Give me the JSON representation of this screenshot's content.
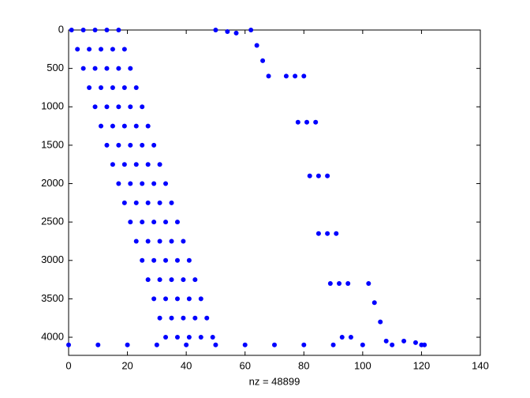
{
  "chart_data": {
    "type": "scatter",
    "xlabel": "nz = 48899",
    "color": "#0000ff",
    "yreverse": true,
    "xlim": [
      0,
      140
    ],
    "xticks": [
      0,
      20,
      40,
      60,
      80,
      100,
      120,
      140
    ],
    "ylim": [
      0,
      4236
    ],
    "yticks": [
      0,
      500,
      1000,
      1500,
      2000,
      2500,
      3000,
      3500,
      4000
    ],
    "x": [
      1,
      3,
      5,
      7,
      9,
      11,
      13,
      15,
      17,
      19,
      21,
      23,
      25,
      27,
      29,
      31,
      33,
      5,
      7,
      9,
      11,
      13,
      15,
      17,
      19,
      21,
      23,
      25,
      27,
      29,
      31,
      33,
      35,
      37,
      9,
      11,
      13,
      15,
      17,
      19,
      21,
      23,
      25,
      27,
      29,
      31,
      33,
      35,
      37,
      39,
      41,
      13,
      15,
      17,
      19,
      21,
      23,
      25,
      27,
      29,
      31,
      33,
      35,
      37,
      39,
      41,
      43,
      45,
      17,
      19,
      21,
      23,
      25,
      27,
      29,
      31,
      33,
      35,
      37,
      39,
      41,
      43,
      45,
      47,
      49,
      0,
      10,
      20,
      30,
      40,
      50,
      60,
      70,
      80,
      90,
      100,
      110,
      120,
      50,
      54,
      57,
      62,
      64,
      66,
      68,
      74,
      77,
      80,
      78,
      81,
      84,
      82,
      85,
      88,
      85,
      88,
      91,
      89,
      92,
      95,
      93,
      96,
      102,
      104,
      106,
      108,
      114,
      118,
      121
    ],
    "values": [
      0,
      250,
      500,
      750,
      1000,
      1250,
      1500,
      1750,
      2000,
      2250,
      2500,
      2750,
      3000,
      3250,
      3500,
      3750,
      4000,
      0,
      250,
      500,
      750,
      1000,
      1250,
      1500,
      1750,
      2000,
      2250,
      2500,
      2750,
      3000,
      3250,
      3500,
      3750,
      4000,
      0,
      250,
      500,
      750,
      1000,
      1250,
      1500,
      1750,
      2000,
      2250,
      2500,
      2750,
      3000,
      3250,
      3500,
      3750,
      4000,
      0,
      250,
      500,
      750,
      1000,
      1250,
      1500,
      1750,
      2000,
      2250,
      2500,
      2750,
      3000,
      3250,
      3500,
      3750,
      4000,
      0,
      250,
      500,
      750,
      1000,
      1250,
      1500,
      1750,
      2000,
      2250,
      2500,
      2750,
      3000,
      3250,
      3500,
      3750,
      4000,
      4100,
      4100,
      4100,
      4100,
      4100,
      4100,
      4100,
      4100,
      4100,
      4100,
      4100,
      4100,
      4100,
      0,
      20,
      40,
      0,
      200,
      400,
      600,
      600,
      600,
      600,
      1200,
      1200,
      1200,
      1900,
      1900,
      1900,
      2650,
      2650,
      2650,
      3300,
      3300,
      3300,
      4000,
      4000,
      3300,
      3550,
      3800,
      4050,
      4050,
      4070,
      4100
    ]
  }
}
